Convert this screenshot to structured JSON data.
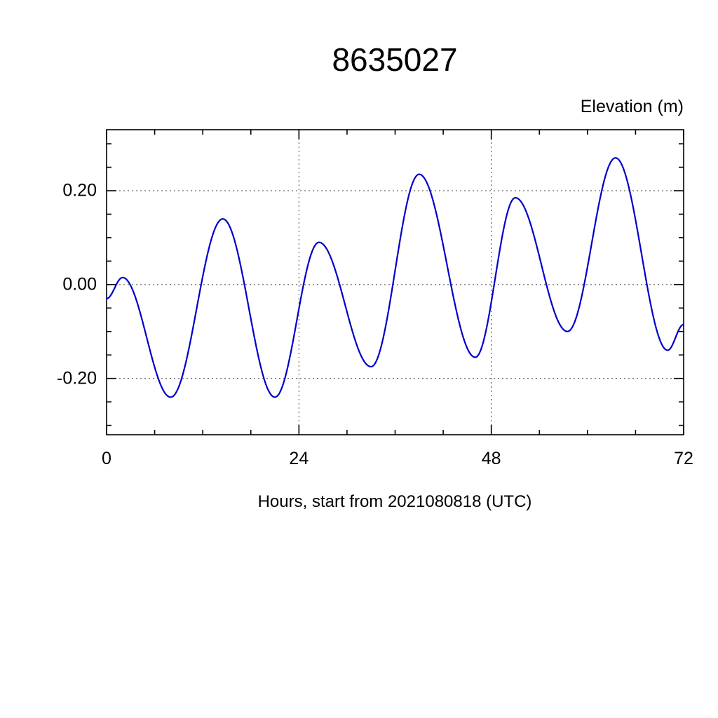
{
  "chart_data": {
    "type": "line",
    "title": "8635027",
    "ylabel": "Elevation (m)",
    "xlabel": "Hours, start from 2021080818 (UTC)",
    "xlim": [
      0,
      72
    ],
    "ylim": [
      -0.32,
      0.33
    ],
    "xticks": [
      0,
      24,
      48,
      72
    ],
    "xtick_labels": [
      "0",
      "24",
      "48",
      "72"
    ],
    "x_minor_step": 6,
    "yticks": [
      -0.2,
      0.0,
      0.2
    ],
    "ytick_labels": [
      "-0.20",
      "0.00",
      "0.20"
    ],
    "y_minor_step": 0.05,
    "y_minor_range": [
      -0.3,
      0.3
    ],
    "grid_x": [
      24,
      48
    ],
    "grid_y": [
      -0.2,
      0.0,
      0.2
    ],
    "grid_on": true,
    "legend": "none",
    "line_color": "#0000cc",
    "series": [
      {
        "name": "elevation",
        "keypoints": [
          [
            0,
            -0.03
          ],
          [
            2,
            0.015
          ],
          [
            8,
            -0.24
          ],
          [
            14.5,
            0.14
          ],
          [
            21,
            -0.24
          ],
          [
            26.5,
            0.09
          ],
          [
            33,
            -0.175
          ],
          [
            39,
            0.235
          ],
          [
            46,
            -0.155
          ],
          [
            51,
            0.185
          ],
          [
            57.5,
            -0.1
          ],
          [
            63.5,
            0.27
          ],
          [
            70,
            -0.14
          ],
          [
            72,
            -0.085
          ]
        ]
      }
    ]
  }
}
